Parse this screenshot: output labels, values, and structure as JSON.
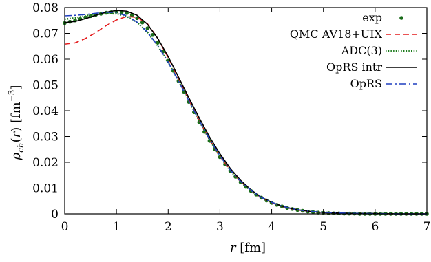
{
  "chart_data": {
    "type": "line",
    "xlabel": "r [fm]",
    "ylabel": "ρch(r) [fm−3]",
    "xlim": [
      0,
      7
    ],
    "ylim": [
      0,
      0.08
    ],
    "x_ticks": [
      0,
      1,
      2,
      3,
      4,
      5,
      6,
      7
    ],
    "y_ticks": [
      0,
      0.01,
      0.02,
      0.03,
      0.04,
      0.05,
      0.06,
      0.07,
      0.08
    ],
    "x_tick_labels": [
      "0",
      "1",
      "2",
      "3",
      "4",
      "5",
      "6",
      "7"
    ],
    "y_tick_labels": [
      "0",
      "0.01",
      "0.02",
      "0.03",
      "0.04",
      "0.05",
      "0.06",
      "0.07",
      "0.08"
    ],
    "grid": false,
    "legend_position": "top-right",
    "series": [
      {
        "name": "exp",
        "style": "points",
        "color": "#1a6b1a",
        "x": [
          0.0,
          0.1,
          0.2,
          0.3,
          0.4,
          0.5,
          0.6,
          0.7,
          0.8,
          0.9,
          1.0,
          1.1,
          1.2,
          1.3,
          1.4,
          1.5,
          1.6,
          1.7,
          1.8,
          1.9,
          2.0,
          2.1,
          2.2,
          2.3,
          2.4,
          2.5,
          2.6,
          2.7,
          2.8,
          2.9,
          3.0,
          3.1,
          3.2,
          3.3,
          3.4,
          3.5,
          3.6,
          3.7,
          3.8,
          3.9,
          4.0,
          4.1,
          4.2,
          4.3,
          4.4,
          4.5,
          4.6,
          4.7,
          4.8,
          4.9,
          5.0,
          5.1,
          5.2,
          5.3,
          5.4,
          5.5,
          5.6,
          5.7,
          5.8,
          5.9,
          6.0,
          6.1,
          6.2,
          6.3,
          6.4,
          6.5,
          6.6,
          6.7,
          6.8,
          6.9,
          7.0
        ],
        "y": [
          0.074,
          0.0745,
          0.075,
          0.0756,
          0.0762,
          0.0767,
          0.0772,
          0.0776,
          0.078,
          0.0782,
          0.0784,
          0.0783,
          0.0779,
          0.0771,
          0.0759,
          0.0742,
          0.072,
          0.0694,
          0.0664,
          0.063,
          0.0594,
          0.0555,
          0.0515,
          0.0474,
          0.0434,
          0.0394,
          0.0355,
          0.0318,
          0.0283,
          0.025,
          0.022,
          0.0192,
          0.0167,
          0.0144,
          0.0123,
          0.0105,
          0.0089,
          0.0075,
          0.0063,
          0.0052,
          0.0043,
          0.0035,
          0.0029,
          0.0023,
          0.0019,
          0.0015,
          0.0012,
          0.0009,
          0.0007,
          0.0005,
          0.0004,
          0.0003,
          0.0002,
          0.0002,
          0.0001,
          0.0001,
          0.0001,
          0.0,
          0.0,
          0.0,
          0.0,
          0.0,
          0.0,
          0.0,
          0.0,
          0.0,
          0.0,
          0.0,
          0.0,
          0.0,
          0.0
        ]
      },
      {
        "name": "QMC AV18+UIX",
        "style": "dashed",
        "color": "#e41a1c",
        "x": [
          0.0,
          0.2,
          0.4,
          0.6,
          0.8,
          1.0,
          1.2,
          1.4,
          1.6,
          1.8,
          2.0,
          2.2,
          2.4,
          2.6,
          2.8,
          3.0,
          3.2,
          3.4,
          3.6,
          3.8,
          4.0,
          4.2,
          4.4,
          4.6,
          4.8,
          5.0,
          5.5,
          6.0,
          6.5,
          7.0
        ],
        "y": [
          0.0658,
          0.0663,
          0.068,
          0.0703,
          0.073,
          0.0752,
          0.0766,
          0.0762,
          0.0737,
          0.068,
          0.0606,
          0.0525,
          0.0442,
          0.0362,
          0.0288,
          0.0223,
          0.0169,
          0.0125,
          0.009,
          0.0063,
          0.0043,
          0.0029,
          0.0019,
          0.0012,
          0.0008,
          0.0005,
          0.0002,
          0.0001,
          0.0,
          0.0
        ]
      },
      {
        "name": "ADC(3)",
        "style": "dotted",
        "color": "#1a7a1a",
        "x": [
          0.0,
          0.2,
          0.4,
          0.6,
          0.8,
          1.0,
          1.2,
          1.4,
          1.6,
          1.8,
          2.0,
          2.2,
          2.4,
          2.6,
          2.8,
          3.0,
          3.2,
          3.4,
          3.6,
          3.8,
          4.0,
          4.2,
          4.4,
          4.6,
          4.8,
          5.0,
          5.5,
          6.0,
          6.5,
          7.0
        ],
        "y": [
          0.0755,
          0.076,
          0.0768,
          0.0774,
          0.0777,
          0.0776,
          0.0766,
          0.0742,
          0.0704,
          0.0651,
          0.0588,
          0.0515,
          0.0438,
          0.036,
          0.0287,
          0.0222,
          0.0167,
          0.0123,
          0.0089,
          0.0063,
          0.0044,
          0.003,
          0.002,
          0.0013,
          0.0009,
          0.0006,
          0.0002,
          0.0001,
          0.0,
          0.0
        ]
      },
      {
        "name": "OpRS intr",
        "style": "solid",
        "color": "#000000",
        "x": [
          0.0,
          0.2,
          0.4,
          0.6,
          0.8,
          1.0,
          1.2,
          1.4,
          1.6,
          1.8,
          2.0,
          2.2,
          2.4,
          2.6,
          2.8,
          3.0,
          3.2,
          3.4,
          3.6,
          3.8,
          4.0,
          4.2,
          4.4,
          4.6,
          4.8,
          5.0,
          5.5,
          6.0,
          6.5,
          7.0
        ],
        "y": [
          0.0742,
          0.0746,
          0.0757,
          0.077,
          0.0782,
          0.0789,
          0.0786,
          0.077,
          0.0735,
          0.068,
          0.061,
          0.053,
          0.045,
          0.0372,
          0.0298,
          0.0233,
          0.0176,
          0.013,
          0.0093,
          0.0065,
          0.0045,
          0.003,
          0.002,
          0.0013,
          0.0008,
          0.0005,
          0.0002,
          0.0001,
          0.0,
          0.0
        ]
      },
      {
        "name": "OpRS",
        "style": "dashdot",
        "color": "#1f3fbf",
        "x": [
          0.0,
          0.2,
          0.4,
          0.6,
          0.8,
          1.0,
          1.2,
          1.4,
          1.6,
          1.8,
          2.0,
          2.2,
          2.4,
          2.6,
          2.8,
          3.0,
          3.2,
          3.4,
          3.6,
          3.8,
          4.0,
          4.2,
          4.4,
          4.6,
          4.8,
          5.0,
          5.5,
          6.0,
          6.5,
          7.0
        ],
        "y": [
          0.0768,
          0.077,
          0.0773,
          0.0778,
          0.0782,
          0.078,
          0.0768,
          0.0743,
          0.0705,
          0.0652,
          0.0588,
          0.0515,
          0.0438,
          0.0361,
          0.029,
          0.0225,
          0.017,
          0.0126,
          0.0091,
          0.0064,
          0.0045,
          0.003,
          0.002,
          0.0013,
          0.0009,
          0.0006,
          0.0002,
          0.0001,
          0.0,
          0.0
        ]
      }
    ]
  }
}
